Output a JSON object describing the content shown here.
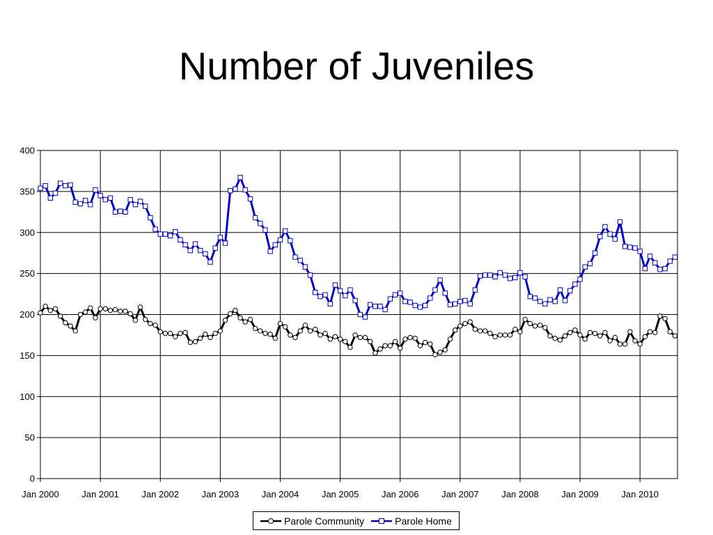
{
  "chart_data": {
    "type": "line",
    "title": "Number of Juveniles",
    "xlabel": "",
    "ylabel": "",
    "ylim": [
      0,
      400
    ],
    "yticks": [
      0,
      50,
      100,
      150,
      200,
      250,
      300,
      350,
      400
    ],
    "grid": true,
    "legend": "bottom-center",
    "x_start": "Jan 2000",
    "xtick_labels": [
      "Jan 2000",
      "Jan 2001",
      "Jan 2002",
      "Jan 2003",
      "Jan 2004",
      "Jan 2005",
      "Jan 2006",
      "Jan 2007",
      "Jan 2008",
      "Jan 2009",
      "Jan 2010"
    ],
    "series": [
      {
        "name": "Parole Community",
        "color": "#000000",
        "marker": "circle",
        "values": [
          202,
          210,
          205,
          207,
          198,
          190,
          186,
          180,
          200,
          203,
          208,
          196,
          207,
          207,
          205,
          206,
          204,
          204,
          201,
          193,
          209,
          194,
          189,
          187,
          179,
          177,
          177,
          173,
          177,
          178,
          166,
          167,
          171,
          176,
          172,
          177,
          180,
          193,
          201,
          205,
          196,
          191,
          194,
          183,
          180,
          177,
          176,
          171,
          189,
          185,
          175,
          172,
          180,
          187,
          180,
          182,
          175,
          177,
          170,
          173,
          170,
          167,
          160,
          175,
          172,
          172,
          167,
          153,
          158,
          162,
          162,
          167,
          159,
          170,
          172,
          171,
          162,
          166,
          164,
          151,
          154,
          157,
          170,
          181,
          186,
          189,
          191,
          182,
          180,
          180,
          177,
          173,
          175,
          175,
          175,
          182,
          179,
          194,
          189,
          186,
          187,
          184,
          174,
          171,
          169,
          174,
          178,
          181,
          175,
          170,
          178,
          177,
          174,
          178,
          168,
          172,
          164,
          164,
          179,
          168,
          164,
          173,
          179,
          178,
          198,
          195,
          179,
          174
        ]
      },
      {
        "name": "Parole Home",
        "color": "#0000cc",
        "marker": "square",
        "values": [
          354,
          357,
          342,
          348,
          360,
          357,
          358,
          337,
          335,
          339,
          334,
          352,
          345,
          340,
          342,
          325,
          326,
          325,
          340,
          334,
          338,
          332,
          318,
          304,
          298,
          298,
          296,
          301,
          291,
          285,
          278,
          286,
          278,
          274,
          264,
          281,
          294,
          287,
          351,
          353,
          367,
          352,
          341,
          318,
          311,
          303,
          277,
          285,
          291,
          302,
          290,
          270,
          266,
          258,
          248,
          227,
          222,
          224,
          213,
          236,
          229,
          223,
          230,
          217,
          200,
          197,
          212,
          210,
          210,
          206,
          219,
          224,
          226,
          216,
          215,
          211,
          209,
          211,
          220,
          230,
          242,
          226,
          212,
          213,
          216,
          217,
          213,
          230,
          247,
          248,
          248,
          246,
          251,
          248,
          244,
          245,
          251,
          246,
          222,
          220,
          216,
          213,
          218,
          216,
          230,
          217,
          229,
          237,
          243,
          258,
          262,
          275,
          295,
          307,
          298,
          292,
          313,
          283,
          282,
          281,
          277,
          256,
          271,
          263,
          255,
          256,
          265,
          270
        ]
      }
    ]
  },
  "legend": {
    "community_label": "Parole Community",
    "home_label": "Parole Home"
  }
}
